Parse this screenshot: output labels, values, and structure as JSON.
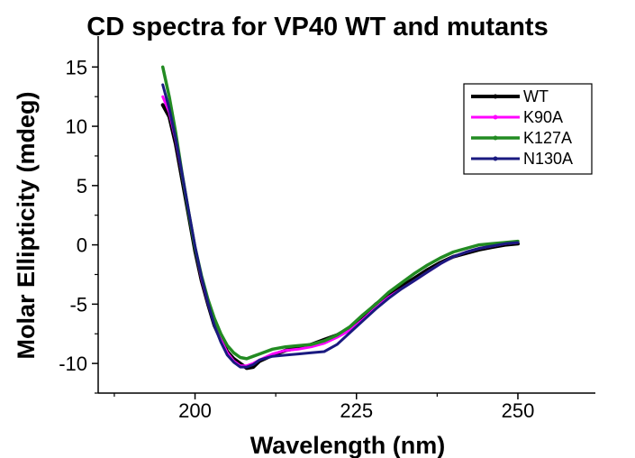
{
  "chart_data": {
    "type": "line",
    "title": "CD spectra for VP40 WT and mutants",
    "xlabel": "Wavelength (nm)",
    "ylabel": "Molar Ellipticity (mdeg)",
    "xlim": [
      185,
      262
    ],
    "ylim": [
      -12.5,
      17
    ],
    "xticks": [
      200,
      225,
      250
    ],
    "xtick_labels": [
      "200",
      "225",
      "250"
    ],
    "yticks": [
      15,
      10,
      5,
      0,
      -5,
      -10
    ],
    "ytick_labels": [
      "15",
      "10",
      "5",
      "0",
      "-5",
      "-10"
    ],
    "grid": false,
    "legend_position": "top-right",
    "series": [
      {
        "name": "WT",
        "color": "#000000",
        "x": [
          195,
          196,
          197,
          198,
          199,
          200,
          201,
          202,
          203,
          204,
          205,
          206,
          207,
          208,
          209,
          210,
          212,
          214,
          216,
          218,
          220,
          222,
          224,
          226,
          228,
          230,
          232,
          234,
          236,
          238,
          240,
          242,
          244,
          246,
          248,
          250
        ],
        "y": [
          11.8,
          10.8,
          8.5,
          5.5,
          2.5,
          -0.5,
          -3.0,
          -5.0,
          -6.8,
          -8.0,
          -9.0,
          -9.6,
          -10.0,
          -10.4,
          -10.3,
          -9.8,
          -9.3,
          -8.9,
          -8.7,
          -8.4,
          -8.0,
          -7.6,
          -7.0,
          -6.0,
          -5.0,
          -4.2,
          -3.5,
          -2.8,
          -2.1,
          -1.5,
          -1.0,
          -0.7,
          -0.4,
          -0.2,
          0.0,
          0.1
        ]
      },
      {
        "name": "K90A",
        "color": "#ff00ff",
        "x": [
          195,
          196,
          197,
          198,
          199,
          200,
          201,
          202,
          203,
          204,
          205,
          206,
          207,
          208,
          209,
          210,
          212,
          214,
          216,
          218,
          220,
          222,
          224,
          226,
          228,
          230,
          232,
          234,
          236,
          238,
          240,
          242,
          244,
          246,
          248,
          250
        ],
        "y": [
          12.5,
          11.2,
          8.9,
          5.9,
          2.8,
          -0.2,
          -2.8,
          -4.9,
          -6.7,
          -8.0,
          -9.1,
          -9.8,
          -10.2,
          -10.2,
          -10.0,
          -9.7,
          -9.2,
          -8.9,
          -8.8,
          -8.6,
          -8.3,
          -7.8,
          -7.2,
          -6.3,
          -5.3,
          -4.4,
          -3.7,
          -3.0,
          -2.3,
          -1.6,
          -1.0,
          -0.6,
          -0.3,
          -0.1,
          0.1,
          0.2
        ]
      },
      {
        "name": "K127A",
        "color": "#228b22",
        "x": [
          195,
          196,
          197,
          198,
          199,
          200,
          201,
          202,
          203,
          204,
          205,
          206,
          207,
          208,
          209,
          210,
          212,
          214,
          216,
          218,
          220,
          222,
          224,
          226,
          228,
          230,
          232,
          234,
          236,
          238,
          240,
          242,
          244,
          246,
          248,
          250
        ],
        "y": [
          15.0,
          12.5,
          9.5,
          6.0,
          2.8,
          -0.2,
          -2.6,
          -4.6,
          -6.2,
          -7.5,
          -8.5,
          -9.1,
          -9.5,
          -9.6,
          -9.4,
          -9.2,
          -8.8,
          -8.6,
          -8.5,
          -8.4,
          -8.1,
          -7.6,
          -6.9,
          -5.9,
          -5.0,
          -4.0,
          -3.2,
          -2.4,
          -1.7,
          -1.1,
          -0.6,
          -0.3,
          0.0,
          0.1,
          0.2,
          0.3
        ]
      },
      {
        "name": "N130A",
        "color": "#1a1a80",
        "x": [
          195,
          196,
          197,
          198,
          199,
          200,
          201,
          202,
          203,
          204,
          205,
          206,
          207,
          208,
          209,
          210,
          212,
          214,
          216,
          218,
          220,
          222,
          224,
          226,
          228,
          230,
          232,
          234,
          236,
          238,
          240,
          242,
          244,
          246,
          248,
          250
        ],
        "y": [
          13.5,
          11.5,
          9.0,
          6.0,
          2.9,
          -0.1,
          -2.7,
          -4.9,
          -6.8,
          -8.2,
          -9.3,
          -9.9,
          -10.3,
          -10.3,
          -10.1,
          -9.7,
          -9.4,
          -9.3,
          -9.2,
          -9.1,
          -9.0,
          -8.4,
          -7.4,
          -6.4,
          -5.4,
          -4.5,
          -3.7,
          -3.0,
          -2.3,
          -1.6,
          -1.0,
          -0.6,
          -0.3,
          -0.1,
          0.1,
          0.2
        ]
      }
    ]
  }
}
